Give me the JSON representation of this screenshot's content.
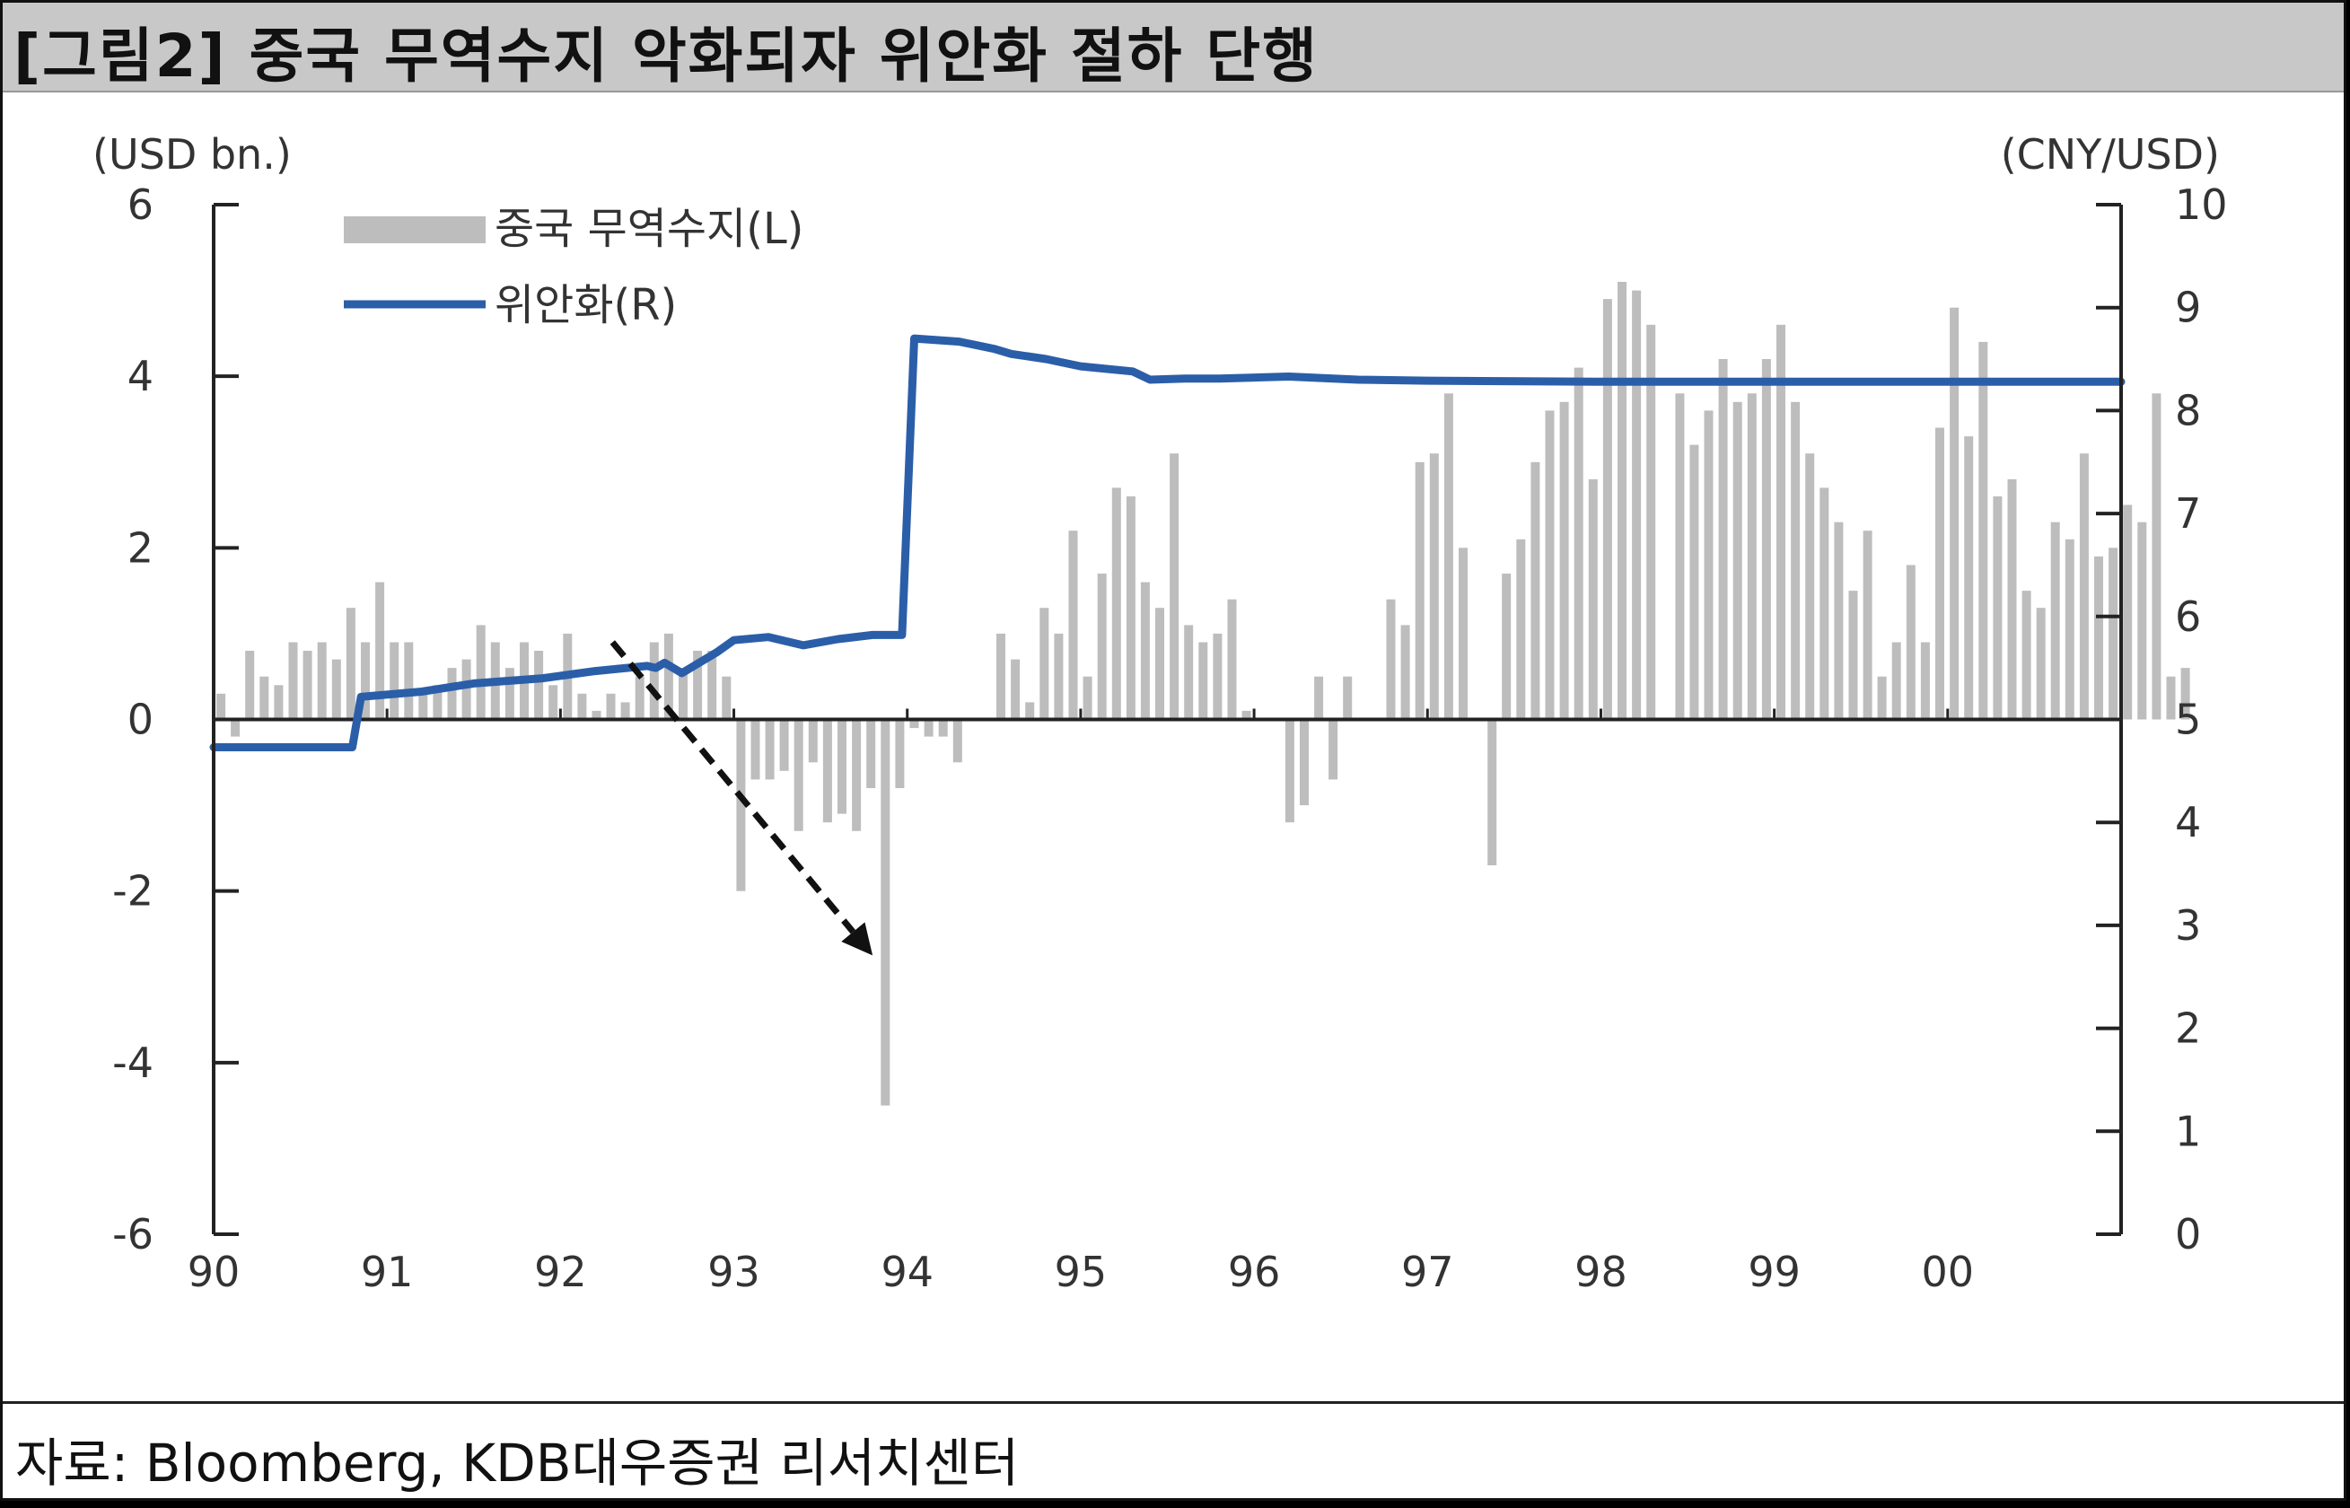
{
  "title": "[그림2] 중국 무역수지 악화되자 위안화 절하 단행",
  "source": "자료: Bloomberg, KDB대우증권 리서치센터",
  "chart_data": {
    "type": "bar+line",
    "left_axis_unit": "(USD bn.)",
    "right_axis_unit": "(CNY/USD)",
    "left_ylim": [
      -6,
      6
    ],
    "left_ticks": [
      "6",
      "4",
      "2",
      "0",
      "-2",
      "-4",
      "-6"
    ],
    "right_ylim": [
      0,
      10
    ],
    "right_ticks": [
      "10",
      "9",
      "8",
      "7",
      "6",
      "5",
      "4",
      "3",
      "2",
      "1",
      "0"
    ],
    "x_ticks": [
      "90",
      "91",
      "92",
      "93",
      "94",
      "95",
      "96",
      "97",
      "98",
      "99",
      "00"
    ],
    "x_range": [
      1990,
      2001
    ],
    "legend": {
      "bar_label": "중국 무역수지(L)",
      "line_label": "위안화(R)"
    },
    "colors": {
      "bars": "#bdbdbd",
      "line": "#2b5ea8",
      "axis": "#222222",
      "arrow": "#111111"
    },
    "bar_series": {
      "name": "중국 무역수지(L)",
      "start": 1990.0,
      "step": 0.0833,
      "values": [
        0.3,
        -0.2,
        0.8,
        0.5,
        0.4,
        0.9,
        0.8,
        0.9,
        0.7,
        1.3,
        0.9,
        1.6,
        0.9,
        0.9,
        0.3,
        0.4,
        0.6,
        0.7,
        1.1,
        0.9,
        0.6,
        0.9,
        0.8,
        0.4,
        1.0,
        0.3,
        0.1,
        0.3,
        0.2,
        0.5,
        0.9,
        1.0,
        0.6,
        0.8,
        0.8,
        0.5,
        -2.0,
        -0.7,
        -0.7,
        -0.6,
        -1.3,
        -0.5,
        -1.2,
        -1.1,
        -1.3,
        -0.8,
        -4.5,
        -0.8,
        -0.1,
        -0.2,
        -0.2,
        -0.5,
        0.0,
        0.0,
        1.0,
        0.7,
        0.2,
        1.3,
        1.0,
        2.2,
        0.5,
        1.7,
        2.7,
        2.6,
        1.6,
        1.3,
        3.1,
        1.1,
        0.9,
        1.0,
        1.4,
        0.1,
        0.0,
        0.0,
        -1.2,
        -1.0,
        0.5,
        -0.7,
        0.5,
        0.0,
        0.0,
        1.4,
        1.1,
        3.0,
        3.1,
        3.8,
        2.0,
        0.0,
        -1.7,
        1.7,
        2.1,
        3.0,
        3.6,
        3.7,
        4.1,
        2.8,
        4.9,
        5.1,
        5.0,
        4.6,
        0.0,
        3.8,
        3.2,
        3.6,
        4.2,
        3.7,
        3.8,
        4.2,
        4.6,
        3.7,
        3.1,
        2.7,
        2.3,
        1.5,
        2.2,
        0.5,
        0.9,
        1.8,
        0.9,
        3.4,
        4.8,
        3.3,
        4.4,
        2.6,
        2.8,
        1.5,
        1.3,
        2.3,
        2.1,
        3.1,
        1.9,
        2.0,
        2.5,
        2.3,
        3.8,
        0.5,
        0.6
      ]
    },
    "line_series": {
      "name": "위안화(R)",
      "points": [
        [
          1990.0,
          4.73
        ],
        [
          1990.8,
          4.73
        ],
        [
          1990.85,
          5.22
        ],
        [
          1991.2,
          5.27
        ],
        [
          1991.5,
          5.35
        ],
        [
          1991.9,
          5.4
        ],
        [
          1992.2,
          5.47
        ],
        [
          1992.5,
          5.52
        ],
        [
          1992.55,
          5.5
        ],
        [
          1992.6,
          5.55
        ],
        [
          1992.7,
          5.45
        ],
        [
          1992.8,
          5.55
        ],
        [
          1992.9,
          5.65
        ],
        [
          1993.0,
          5.77
        ],
        [
          1993.2,
          5.8
        ],
        [
          1993.4,
          5.72
        ],
        [
          1993.6,
          5.78
        ],
        [
          1993.8,
          5.82
        ],
        [
          1993.97,
          5.82
        ],
        [
          1994.04,
          8.7
        ],
        [
          1994.3,
          8.67
        ],
        [
          1994.5,
          8.6
        ],
        [
          1994.6,
          8.55
        ],
        [
          1994.8,
          8.5
        ],
        [
          1995.0,
          8.43
        ],
        [
          1995.3,
          8.38
        ],
        [
          1995.4,
          8.3
        ],
        [
          1995.6,
          8.31
        ],
        [
          1995.8,
          8.31
        ],
        [
          1996.2,
          8.33
        ],
        [
          1996.6,
          8.3
        ],
        [
          1997.0,
          8.29
        ],
        [
          1998.0,
          8.28
        ],
        [
          1999.0,
          8.28
        ],
        [
          2000.0,
          8.28
        ],
        [
          2001.0,
          8.28
        ]
      ]
    },
    "annotation": {
      "type": "arrow",
      "meaning": "trade balance deterioration",
      "from": [
        1992.3,
        0.9
      ],
      "to": [
        1993.8,
        -2.75
      ]
    }
  }
}
